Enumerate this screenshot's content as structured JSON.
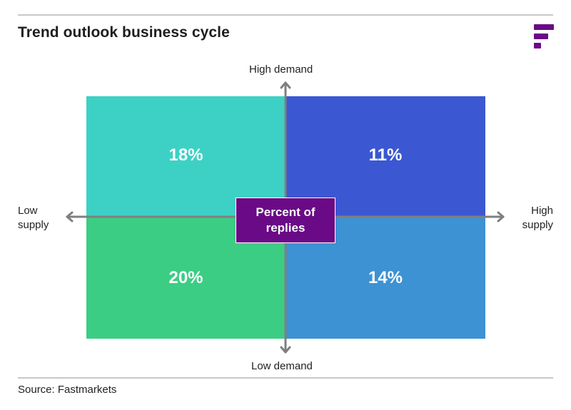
{
  "title": "Trend outlook business cycle",
  "source": "Source: Fastmarkets",
  "brand_color": "#6a0a86",
  "logo": "fastmarkets-logo-icon",
  "center_label": "Percent of replies",
  "axes": {
    "top": "High demand",
    "bottom": "Low demand",
    "left_line1": "Low",
    "left_line2": "supply",
    "right_line1": "High",
    "right_line2": "supply"
  },
  "quadrants": {
    "top_left": {
      "label": "18%",
      "color": "#3dd1c5"
    },
    "top_right": {
      "label": "11%",
      "color": "#3b58d2"
    },
    "bottom_left": {
      "label": "20%",
      "color": "#3ccd84"
    },
    "bottom_right": {
      "label": "14%",
      "color": "#3d92d3"
    }
  },
  "chart_data": {
    "type": "table",
    "title": "Trend outlook business cycle",
    "x_axis": [
      "Low supply",
      "High supply"
    ],
    "y_axis": [
      "High demand",
      "Low demand"
    ],
    "cells": [
      {
        "demand": "High demand",
        "supply": "Low supply",
        "value": 18
      },
      {
        "demand": "High demand",
        "supply": "High supply",
        "value": 11
      },
      {
        "demand": "Low demand",
        "supply": "Low supply",
        "value": 20
      },
      {
        "demand": "Low demand",
        "supply": "High supply",
        "value": 14
      }
    ],
    "unit": "Percent of replies"
  }
}
